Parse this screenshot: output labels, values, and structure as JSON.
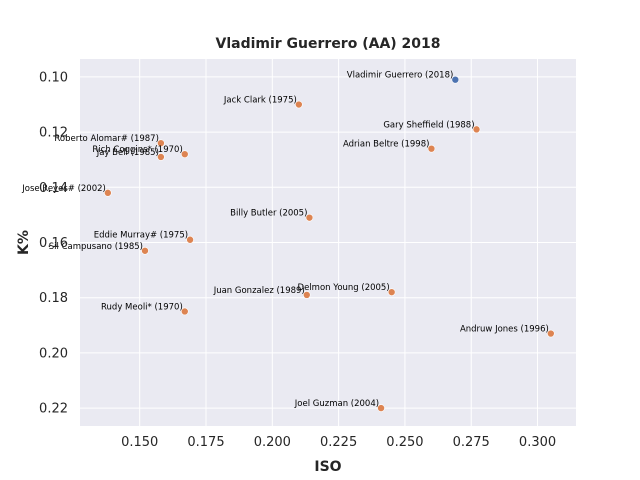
{
  "chart_data": {
    "type": "scatter",
    "title": "Vladimir Guerrero (AA) 2018",
    "xlabel": "ISO",
    "ylabel": "K%",
    "xlim": [
      0.1275,
      0.3145
    ],
    "ylim": [
      0.2265,
      0.0935
    ],
    "y_inverted": true,
    "grid": true,
    "xticks": [
      0.15,
      0.175,
      0.2,
      0.225,
      0.25,
      0.275,
      0.3
    ],
    "xtick_labels": [
      "0.150",
      "0.175",
      "0.200",
      "0.225",
      "0.250",
      "0.275",
      "0.300"
    ],
    "yticks": [
      0.1,
      0.12,
      0.14,
      0.16,
      0.18,
      0.2,
      0.22
    ],
    "ytick_labels": [
      "0.10",
      "0.12",
      "0.14",
      "0.16",
      "0.18",
      "0.20",
      "0.22"
    ],
    "colors": {
      "highlight": "#4c72b0",
      "comparison": "#dd8452",
      "background": "#eaeaf2",
      "grid": "#ffffff"
    },
    "points": [
      {
        "label": "Vladimir Guerrero (2018)",
        "x": 0.269,
        "y": 0.101,
        "group": "highlight"
      },
      {
        "label": "Jack Clark (1975)",
        "x": 0.21,
        "y": 0.11,
        "group": "comparison"
      },
      {
        "label": "Gary Sheffield (1988)",
        "x": 0.277,
        "y": 0.119,
        "group": "comparison"
      },
      {
        "label": "Roberto Alomar# (1987)",
        "x": 0.158,
        "y": 0.124,
        "group": "comparison"
      },
      {
        "label": "Adrian Beltre (1998)",
        "x": 0.26,
        "y": 0.126,
        "group": "comparison"
      },
      {
        "label": "Rich Coggins* (1970)",
        "x": 0.167,
        "y": 0.128,
        "group": "comparison"
      },
      {
        "label": "Jay Bell (1985)",
        "x": 0.158,
        "y": 0.129,
        "group": "comparison"
      },
      {
        "label": "Jose Reyes# (2002)",
        "x": 0.138,
        "y": 0.142,
        "group": "comparison"
      },
      {
        "label": "Billy Butler (2005)",
        "x": 0.214,
        "y": 0.151,
        "group": "comparison"
      },
      {
        "label": "Eddie Murray# (1975)",
        "x": 0.169,
        "y": 0.159,
        "group": "comparison"
      },
      {
        "label": "Sil Campusano (1985)",
        "x": 0.152,
        "y": 0.163,
        "group": "comparison"
      },
      {
        "label": "Delmon Young (2005)",
        "x": 0.245,
        "y": 0.178,
        "group": "comparison"
      },
      {
        "label": "Juan Gonzalez (1989)",
        "x": 0.213,
        "y": 0.179,
        "group": "comparison"
      },
      {
        "label": "Rudy Meoli* (1970)",
        "x": 0.167,
        "y": 0.185,
        "group": "comparison"
      },
      {
        "label": "Andruw Jones (1996)",
        "x": 0.305,
        "y": 0.193,
        "group": "comparison"
      },
      {
        "label": "Joel Guzman (2004)",
        "x": 0.241,
        "y": 0.22,
        "group": "comparison"
      }
    ]
  }
}
